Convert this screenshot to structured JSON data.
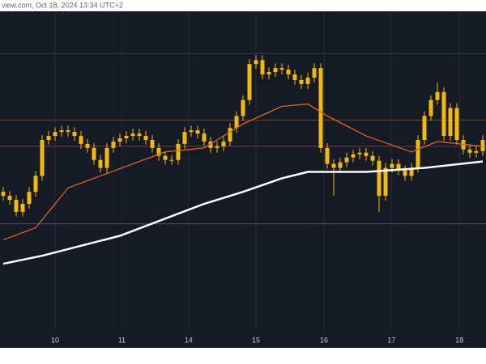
{
  "chart_data": {
    "type": "candlestick",
    "title": "view.com, Oct 18, 2024 13:34 UTC+2",
    "color": "#f0b90b",
    "open": [
      175,
      170,
      165,
      150,
      160,
      175,
      195,
      240,
      245,
      250,
      252,
      250,
      245,
      235,
      230,
      215,
      205,
      230,
      238,
      242,
      245,
      248,
      245,
      240,
      230,
      220,
      215,
      215,
      235,
      250,
      252,
      248,
      238,
      230,
      232,
      238,
      255,
      270,
      290,
      335,
      340,
      322,
      325,
      330,
      328,
      322,
      315,
      310,
      318,
      330,
      230,
      210,
      205,
      212,
      218,
      222,
      224,
      220,
      214,
      170,
      205,
      210,
      202,
      195,
      205,
      240,
      270,
      290,
      300,
      245,
      280,
      240,
      228,
      224,
      226
    ],
    "high": [
      181,
      176,
      171,
      166,
      181,
      201,
      246,
      251,
      256,
      258,
      258,
      256,
      251,
      241,
      236,
      221,
      236,
      244,
      248,
      251,
      254,
      254,
      251,
      246,
      236,
      226,
      221,
      241,
      256,
      258,
      258,
      254,
      244,
      238,
      244,
      261,
      276,
      296,
      341,
      346,
      346,
      331,
      336,
      336,
      334,
      328,
      321,
      324,
      336,
      336,
      236,
      216,
      218,
      224,
      228,
      230,
      230,
      226,
      220,
      211,
      216,
      216,
      208,
      211,
      246,
      276,
      296,
      312,
      306,
      286,
      286,
      246,
      234,
      232,
      246
    ],
    "low": [
      164,
      159,
      144,
      144,
      154,
      169,
      189,
      234,
      239,
      244,
      244,
      239,
      229,
      224,
      209,
      199,
      199,
      224,
      232,
      236,
      239,
      239,
      234,
      224,
      214,
      209,
      209,
      209,
      229,
      244,
      242,
      232,
      224,
      224,
      226,
      232,
      249,
      264,
      284,
      329,
      316,
      316,
      319,
      322,
      316,
      309,
      304,
      304,
      312,
      224,
      204,
      170,
      199,
      206,
      212,
      216,
      214,
      208,
      150,
      164,
      199,
      196,
      189,
      189,
      199,
      234,
      264,
      284,
      239,
      239,
      234,
      222,
      218,
      218,
      220
    ],
    "close": [
      170,
      165,
      150,
      160,
      175,
      195,
      240,
      245,
      250,
      252,
      250,
      245,
      235,
      230,
      215,
      205,
      230,
      238,
      242,
      245,
      248,
      245,
      240,
      230,
      220,
      215,
      215,
      235,
      250,
      252,
      248,
      238,
      230,
      232,
      238,
      255,
      270,
      290,
      335,
      340,
      322,
      325,
      330,
      328,
      322,
      315,
      310,
      318,
      330,
      230,
      210,
      205,
      212,
      218,
      222,
      224,
      220,
      214,
      170,
      205,
      210,
      202,
      195,
      205,
      240,
      270,
      290,
      300,
      245,
      280,
      240,
      228,
      224,
      226,
      240
    ],
    "series": [
      {
        "color": "#d9652b",
        "x": [
          0,
          5,
          10,
          15,
          25,
          31,
          37,
          43,
          47,
          50,
          56,
          63,
          67,
          74
        ],
        "values": [
          115,
          130,
          180,
          195,
          225,
          230,
          260,
          282,
          285,
          270,
          245,
          225,
          238,
          232
        ]
      },
      {
        "color": "#ffffff",
        "x": [
          0,
          6,
          18,
          31,
          37,
          43,
          47,
          56,
          65,
          74
        ],
        "values": [
          85,
          95,
          120,
          160,
          175,
          192,
          200,
          200,
          205,
          213
        ]
      }
    ],
    "levels": [
      348,
      265,
      232,
      135
    ],
    "level_colors": [
      "#3a3f4f",
      "#6b4a2e",
      "#6b3c4a",
      "#5a4a6a"
    ],
    "xlim": [
      -0.5,
      74.5
    ],
    "ylim": [
      0,
      400
    ],
    "xticks": [
      {
        "value": 8,
        "label": "10"
      },
      {
        "value": 18.3,
        "label": "11"
      },
      {
        "value": 28.6,
        "label": "14"
      },
      {
        "value": 39,
        "label": "15"
      },
      {
        "value": 49.5,
        "label": "16"
      },
      {
        "value": 59.9,
        "label": "17"
      },
      {
        "value": 70.4,
        "label": "18"
      }
    ],
    "grid": true
  }
}
